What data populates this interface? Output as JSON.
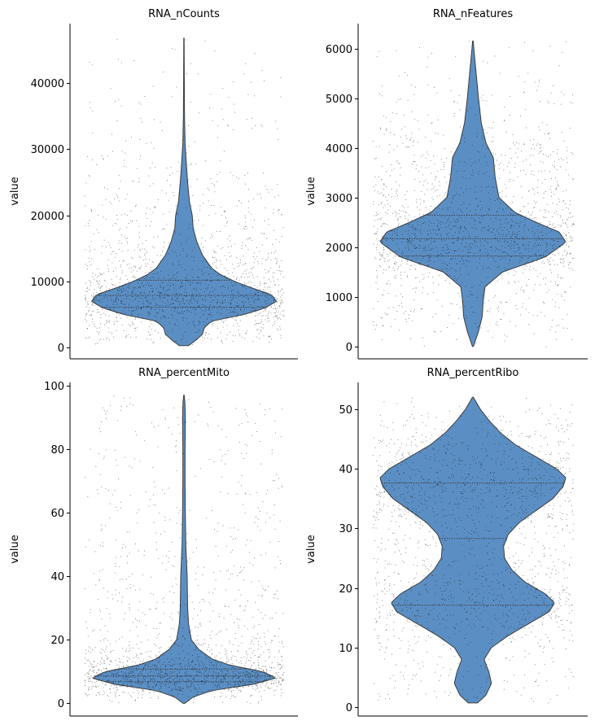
{
  "colors": {
    "violin_fill": "#5b8fc4",
    "violin_edge": "#3d3d3d",
    "points": "#000000"
  },
  "chart_data": [
    {
      "type": "violin",
      "title": "RNA_nCounts",
      "xlabel": "",
      "ylabel": "value",
      "ylim": [
        -1700,
        49000
      ],
      "yticks": [
        0,
        10000,
        20000,
        30000,
        40000
      ],
      "tick_labels": [
        "0",
        "10000",
        "20000",
        "30000",
        "40000"
      ],
      "grid": false,
      "range": [
        300,
        46800
      ],
      "quartiles": [
        6100,
        7900,
        10200
      ],
      "density_profile": [
        [
          300,
          0.05
        ],
        [
          1000,
          0.12
        ],
        [
          2000,
          0.2
        ],
        [
          3000,
          0.22
        ],
        [
          4000,
          0.3
        ],
        [
          5000,
          0.65
        ],
        [
          6000,
          0.88
        ],
        [
          7000,
          1.0
        ],
        [
          8000,
          0.95
        ],
        [
          9000,
          0.74
        ],
        [
          10000,
          0.55
        ],
        [
          11000,
          0.4
        ],
        [
          12000,
          0.3
        ],
        [
          14000,
          0.2
        ],
        [
          16000,
          0.14
        ],
        [
          18000,
          0.1
        ],
        [
          20000,
          0.09
        ],
        [
          22000,
          0.06
        ],
        [
          25000,
          0.04
        ],
        [
          28000,
          0.025
        ],
        [
          31000,
          0.012
        ],
        [
          35000,
          0.006
        ],
        [
          40000,
          0.004
        ],
        [
          46800,
          0.002
        ]
      ]
    },
    {
      "type": "violin",
      "title": "RNA_nFeatures",
      "xlabel": "",
      "ylabel": "value",
      "ylim": [
        -250,
        6500
      ],
      "yticks": [
        0,
        1000,
        2000,
        3000,
        4000,
        5000,
        6000
      ],
      "tick_labels": [
        "0",
        "1000",
        "2000",
        "3000",
        "4000",
        "5000",
        "6000"
      ],
      "grid": false,
      "range": [
        0,
        6150
      ],
      "quartiles": [
        1820,
        2170,
        2640
      ],
      "density_profile": [
        [
          0,
          0.005
        ],
        [
          300,
          0.06
        ],
        [
          600,
          0.1
        ],
        [
          900,
          0.11
        ],
        [
          1200,
          0.13
        ],
        [
          1500,
          0.32
        ],
        [
          1800,
          0.78
        ],
        [
          2100,
          1.0
        ],
        [
          2300,
          0.93
        ],
        [
          2500,
          0.68
        ],
        [
          2700,
          0.45
        ],
        [
          3000,
          0.28
        ],
        [
          3400,
          0.24
        ],
        [
          3800,
          0.22
        ],
        [
          4100,
          0.14
        ],
        [
          4500,
          0.09
        ],
        [
          5000,
          0.06
        ],
        [
          5500,
          0.035
        ],
        [
          6000,
          0.01
        ],
        [
          6150,
          0.003
        ]
      ]
    },
    {
      "type": "violin",
      "title": "RNA_percentMito",
      "xlabel": "",
      "ylabel": "value",
      "ylim": [
        -4,
        101
      ],
      "yticks": [
        0,
        20,
        40,
        60,
        80,
        100
      ],
      "tick_labels": [
        "0",
        "20",
        "40",
        "60",
        "80",
        "100"
      ],
      "grid": false,
      "range": [
        0,
        97
      ],
      "quartiles": [
        6.8,
        8.6,
        10.8
      ],
      "density_profile": [
        [
          0,
          0.01
        ],
        [
          2,
          0.1
        ],
        [
          4,
          0.3
        ],
        [
          6,
          0.75
        ],
        [
          8,
          1.0
        ],
        [
          10,
          0.85
        ],
        [
          12,
          0.5
        ],
        [
          14,
          0.3
        ],
        [
          17,
          0.16
        ],
        [
          20,
          0.08
        ],
        [
          25,
          0.05
        ],
        [
          30,
          0.04
        ],
        [
          40,
          0.035
        ],
        [
          50,
          0.02
        ],
        [
          60,
          0.015
        ],
        [
          70,
          0.012
        ],
        [
          80,
          0.012
        ],
        [
          90,
          0.015
        ],
        [
          95,
          0.01
        ],
        [
          97,
          0.002
        ]
      ]
    },
    {
      "type": "violin",
      "title": "RNA_percentRibo",
      "xlabel": "",
      "ylabel": "value",
      "ylim": [
        -1.5,
        54.5
      ],
      "yticks": [
        0,
        10,
        20,
        30,
        40,
        50
      ],
      "tick_labels": [
        "0",
        "10",
        "20",
        "30",
        "40",
        "50"
      ],
      "grid": false,
      "range": [
        0.7,
        52
      ],
      "quartiles": [
        17.1,
        28.3,
        37.6
      ],
      "density_profile": [
        [
          0.7,
          0.05
        ],
        [
          2,
          0.14
        ],
        [
          4,
          0.2
        ],
        [
          6,
          0.17
        ],
        [
          8,
          0.12
        ],
        [
          10,
          0.2
        ],
        [
          12,
          0.38
        ],
        [
          14,
          0.6
        ],
        [
          16,
          0.82
        ],
        [
          17.5,
          0.88
        ],
        [
          19,
          0.78
        ],
        [
          21,
          0.56
        ],
        [
          23,
          0.42
        ],
        [
          25,
          0.34
        ],
        [
          27,
          0.33
        ],
        [
          29,
          0.38
        ],
        [
          31,
          0.5
        ],
        [
          33,
          0.68
        ],
        [
          35,
          0.86
        ],
        [
          37,
          0.97
        ],
        [
          38.5,
          1.0
        ],
        [
          40,
          0.9
        ],
        [
          42,
          0.68
        ],
        [
          44,
          0.46
        ],
        [
          46,
          0.3
        ],
        [
          48,
          0.18
        ],
        [
          50,
          0.08
        ],
        [
          52,
          0.005
        ]
      ]
    }
  ]
}
